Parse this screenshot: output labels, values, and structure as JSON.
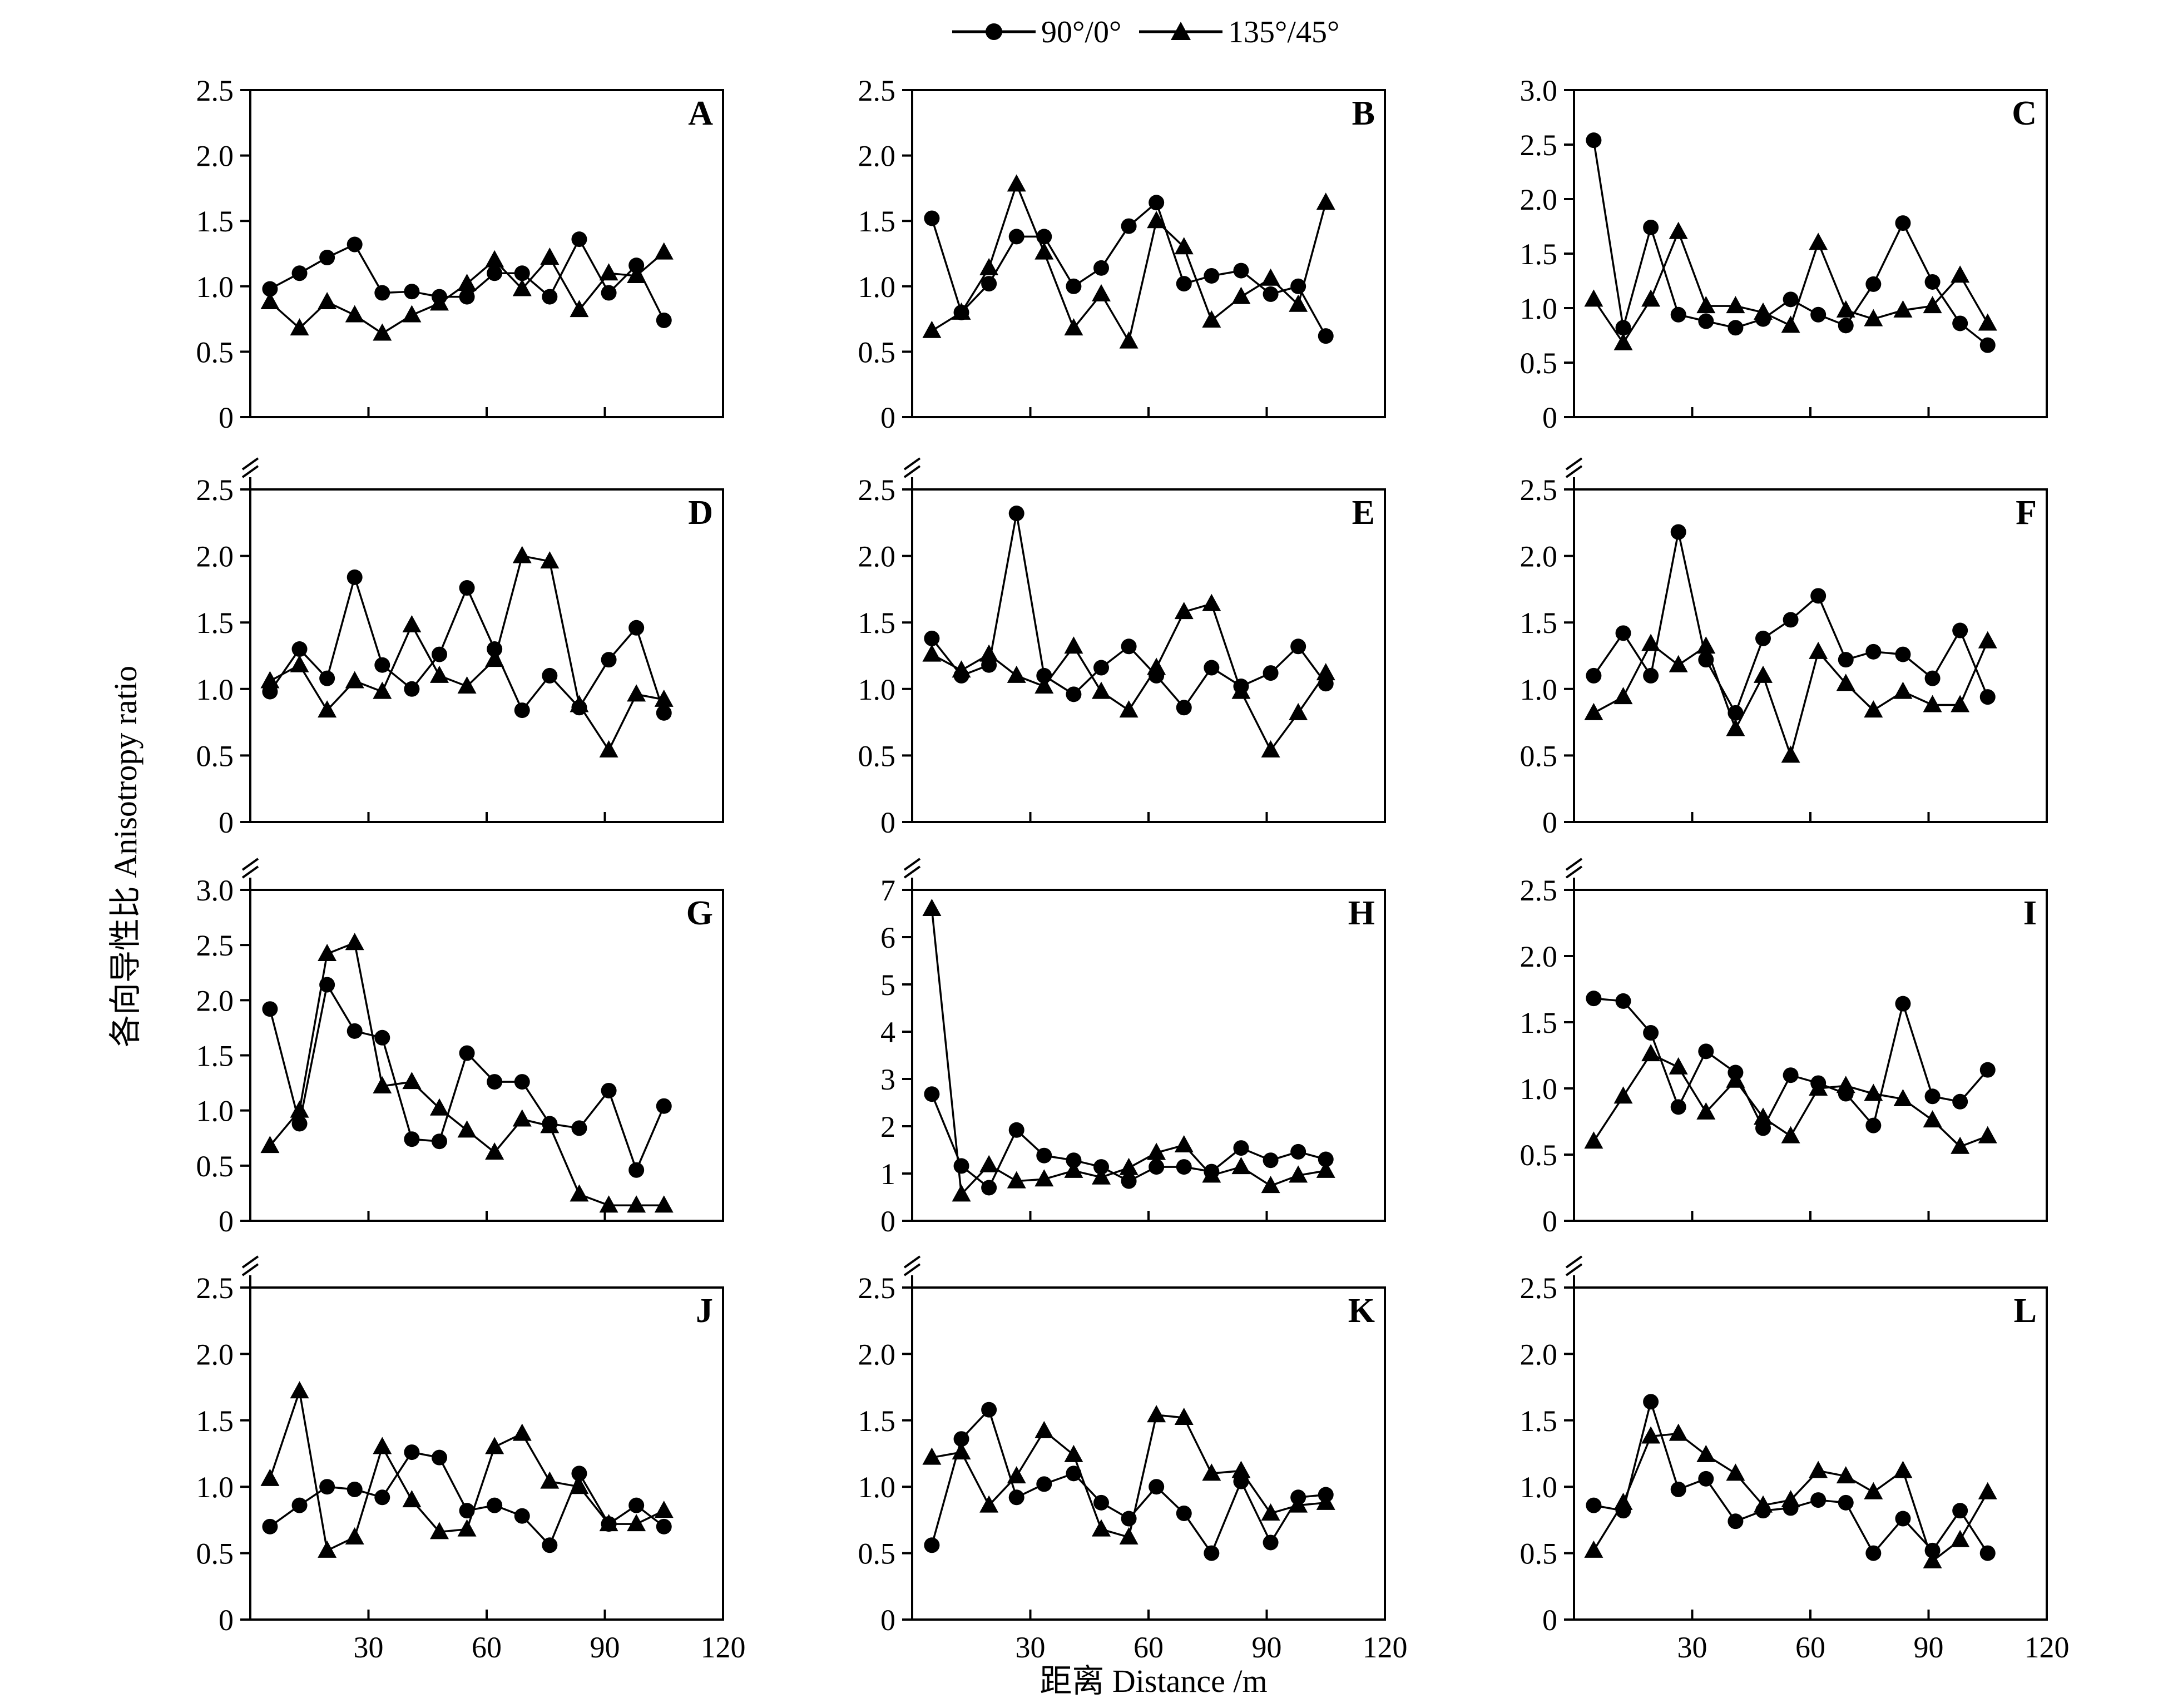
{
  "legend": [
    {
      "label": "90°/0°",
      "marker": "circle"
    },
    {
      "label": "135°/45°",
      "marker": "triangle"
    }
  ],
  "axes": {
    "ylabel": "各向导性比 Anisotropy ratio",
    "xlabel": "距离 Distance /m"
  },
  "chart_data": [
    {
      "type": "line",
      "panel": "A",
      "ylim": [
        0,
        2.5
      ],
      "yticks": [
        0,
        0.5,
        1.0,
        1.5,
        2.0,
        2.5
      ],
      "xlim": [
        0,
        120
      ],
      "xticks": [
        30,
        60,
        90,
        120
      ],
      "x": [
        5,
        12.5,
        19.5,
        26.5,
        33.5,
        41,
        48,
        55,
        62,
        69,
        76,
        83.5,
        91,
        98,
        105
      ],
      "series": [
        {
          "name": "90°/0°",
          "marker": "circle",
          "values": [
            0.98,
            1.1,
            1.22,
            1.32,
            0.95,
            0.96,
            0.92,
            0.92,
            1.1,
            1.1,
            0.92,
            1.36,
            0.95,
            1.16,
            0.74
          ]
        },
        {
          "name": "135°/45°",
          "marker": "triangle",
          "values": [
            0.88,
            0.68,
            0.88,
            0.78,
            0.64,
            0.78,
            0.87,
            1.02,
            1.2,
            0.98,
            1.22,
            0.82,
            1.1,
            1.08,
            1.26
          ]
        }
      ]
    },
    {
      "type": "line",
      "panel": "B",
      "ylim": [
        0,
        2.5
      ],
      "yticks": [
        0,
        0.5,
        1.0,
        1.5,
        2.0,
        2.5
      ],
      "xlim": [
        0,
        120
      ],
      "xticks": [
        30,
        60,
        90,
        120
      ],
      "x": [
        5,
        12.5,
        19.5,
        26.5,
        33.5,
        41,
        48,
        55,
        62,
        69,
        76,
        83.5,
        91,
        98,
        105
      ],
      "series": [
        {
          "name": "90°/0°",
          "marker": "circle",
          "values": [
            1.52,
            0.8,
            1.02,
            1.38,
            1.38,
            1.0,
            1.14,
            1.46,
            1.64,
            1.02,
            1.08,
            1.12,
            0.94,
            1.0,
            0.62
          ]
        },
        {
          "name": "135°/45°",
          "marker": "triangle",
          "values": [
            0.66,
            0.8,
            1.14,
            1.78,
            1.26,
            0.68,
            0.94,
            0.58,
            1.5,
            1.3,
            0.74,
            0.92,
            1.06,
            0.86,
            1.64
          ]
        }
      ]
    },
    {
      "type": "line",
      "panel": "C",
      "ylim": [
        0,
        3.0
      ],
      "yticks": [
        0,
        0.5,
        1.0,
        1.5,
        2.0,
        2.5,
        3.0
      ],
      "xlim": [
        0,
        120
      ],
      "xticks": [
        30,
        60,
        90,
        120
      ],
      "x": [
        5,
        12.5,
        19.5,
        26.5,
        33.5,
        41,
        48,
        55,
        62,
        69,
        76,
        83.5,
        91,
        98,
        105
      ],
      "series": [
        {
          "name": "90°/0°",
          "marker": "circle",
          "values": [
            2.54,
            0.82,
            1.74,
            0.94,
            0.88,
            0.82,
            0.9,
            1.08,
            0.94,
            0.84,
            1.22,
            1.78,
            1.24,
            0.86,
            0.66
          ]
        },
        {
          "name": "135°/45°",
          "marker": "triangle",
          "values": [
            1.08,
            0.68,
            1.08,
            1.7,
            1.02,
            1.02,
            0.96,
            0.84,
            1.6,
            0.98,
            0.9,
            0.98,
            1.02,
            1.3,
            0.86
          ]
        }
      ]
    },
    {
      "type": "line",
      "panel": "D",
      "ylim": [
        0,
        2.5
      ],
      "yticks": [
        0,
        0.5,
        1.0,
        1.5,
        2.0,
        2.5
      ],
      "xlim": [
        0,
        120
      ],
      "xticks": [
        30,
        60,
        90,
        120
      ],
      "x": [
        5,
        12.5,
        19.5,
        26.5,
        33.5,
        41,
        48,
        55,
        62,
        69,
        76,
        83.5,
        91,
        98,
        105
      ],
      "series": [
        {
          "name": "90°/0°",
          "marker": "circle",
          "values": [
            0.98,
            1.3,
            1.08,
            1.84,
            1.18,
            1.0,
            1.26,
            1.76,
            1.3,
            0.84,
            1.1,
            0.86,
            1.22,
            1.46,
            0.82
          ]
        },
        {
          "name": "135°/45°",
          "marker": "triangle",
          "values": [
            1.06,
            1.18,
            0.84,
            1.06,
            0.98,
            1.48,
            1.1,
            1.02,
            1.22,
            2.0,
            1.96,
            0.88,
            0.54,
            0.96,
            0.92
          ]
        }
      ]
    },
    {
      "type": "line",
      "panel": "E",
      "ylim": [
        0,
        2.5
      ],
      "yticks": [
        0,
        0.5,
        1.0,
        1.5,
        2.0,
        2.5
      ],
      "xlim": [
        0,
        120
      ],
      "xticks": [
        30,
        60,
        90,
        120
      ],
      "x": [
        5,
        12.5,
        19.5,
        26.5,
        33.5,
        41,
        48,
        55,
        62,
        69,
        76,
        83.5,
        91,
        98,
        105
      ],
      "series": [
        {
          "name": "90°/0°",
          "marker": "circle",
          "values": [
            1.38,
            1.1,
            1.18,
            2.32,
            1.1,
            0.96,
            1.16,
            1.32,
            1.1,
            0.86,
            1.16,
            1.02,
            1.12,
            1.32,
            1.04
          ]
        },
        {
          "name": "135°/45°",
          "marker": "triangle",
          "values": [
            1.26,
            1.14,
            1.26,
            1.1,
            1.02,
            1.32,
            0.98,
            0.84,
            1.16,
            1.58,
            1.64,
            0.98,
            0.54,
            0.82,
            1.12
          ]
        }
      ]
    },
    {
      "type": "line",
      "panel": "F",
      "ylim": [
        0,
        2.5
      ],
      "yticks": [
        0,
        0.5,
        1.0,
        1.5,
        2.0,
        2.5
      ],
      "xlim": [
        0,
        120
      ],
      "xticks": [
        30,
        60,
        90,
        120
      ],
      "x": [
        5,
        12.5,
        19.5,
        26.5,
        33.5,
        41,
        48,
        55,
        62,
        69,
        76,
        83.5,
        91,
        98,
        105
      ],
      "series": [
        {
          "name": "90°/0°",
          "marker": "circle",
          "values": [
            1.1,
            1.42,
            1.1,
            2.18,
            1.22,
            0.82,
            1.38,
            1.52,
            1.7,
            1.22,
            1.28,
            1.26,
            1.08,
            1.44,
            0.94
          ]
        },
        {
          "name": "135°/45°",
          "marker": "triangle",
          "values": [
            0.82,
            0.94,
            1.34,
            1.18,
            1.32,
            0.7,
            1.1,
            0.5,
            1.28,
            1.04,
            0.84,
            0.98,
            0.88,
            0.88,
            1.36
          ]
        }
      ]
    },
    {
      "type": "line",
      "panel": "G",
      "ylim": [
        0,
        3.0
      ],
      "yticks": [
        0,
        0.5,
        1.0,
        1.5,
        2.0,
        2.5,
        3.0
      ],
      "xlim": [
        0,
        120
      ],
      "xticks": [
        30,
        60,
        90,
        120
      ],
      "x": [
        5,
        12.5,
        19.5,
        26.5,
        33.5,
        41,
        48,
        55,
        62,
        69,
        76,
        83.5,
        91,
        98,
        105
      ],
      "series": [
        {
          "name": "90°/0°",
          "marker": "circle",
          "values": [
            1.92,
            0.88,
            2.14,
            1.72,
            1.66,
            0.74,
            0.72,
            1.52,
            1.26,
            1.26,
            0.88,
            0.84,
            1.18,
            0.46,
            1.04
          ]
        },
        {
          "name": "135°/45°",
          "marker": "triangle",
          "values": [
            0.68,
            1.0,
            2.42,
            2.52,
            1.22,
            1.26,
            1.02,
            0.82,
            0.62,
            0.92,
            0.86,
            0.24,
            0.14,
            0.14,
            0.14
          ]
        }
      ]
    },
    {
      "type": "line",
      "panel": "H",
      "ylim": [
        0,
        7
      ],
      "yticks": [
        0,
        1,
        2,
        3,
        4,
        5,
        6,
        7
      ],
      "xlim": [
        0,
        120
      ],
      "xticks": [
        30,
        60,
        90,
        120
      ],
      "x": [
        5,
        12.5,
        19.5,
        26.5,
        33.5,
        41,
        48,
        55,
        62,
        69,
        76,
        83.5,
        91,
        98,
        105
      ],
      "series": [
        {
          "name": "90°/0°",
          "marker": "circle",
          "values": [
            2.68,
            1.16,
            0.7,
            1.92,
            1.38,
            1.28,
            1.14,
            0.84,
            1.14,
            1.14,
            1.04,
            1.54,
            1.28,
            1.46,
            1.3
          ]
        },
        {
          "name": "135°/45°",
          "marker": "triangle",
          "values": [
            6.6,
            0.56,
            1.18,
            0.84,
            0.88,
            1.06,
            0.92,
            1.12,
            1.44,
            1.6,
            0.96,
            1.14,
            0.74,
            0.96,
            1.06
          ]
        }
      ]
    },
    {
      "type": "line",
      "panel": "I",
      "ylim": [
        0,
        2.5
      ],
      "yticks": [
        0,
        0.5,
        1.0,
        1.5,
        2.0,
        2.5
      ],
      "xlim": [
        0,
        120
      ],
      "xticks": [
        30,
        60,
        90,
        120
      ],
      "x": [
        5,
        12.5,
        19.5,
        26.5,
        33.5,
        41,
        48,
        55,
        62,
        69,
        76,
        83.5,
        91,
        98,
        105
      ],
      "series": [
        {
          "name": "90°/0°",
          "marker": "circle",
          "values": [
            1.68,
            1.66,
            1.42,
            0.86,
            1.28,
            1.12,
            0.7,
            1.1,
            1.04,
            0.96,
            0.72,
            1.64,
            0.94,
            0.9,
            1.14
          ]
        },
        {
          "name": "135°/45°",
          "marker": "triangle",
          "values": [
            0.6,
            0.94,
            1.26,
            1.16,
            0.82,
            1.06,
            0.78,
            0.64,
            1.0,
            1.02,
            0.96,
            0.92,
            0.76,
            0.56,
            0.64
          ]
        }
      ]
    },
    {
      "type": "line",
      "panel": "J",
      "ylim": [
        0,
        2.5
      ],
      "yticks": [
        0,
        0.5,
        1.0,
        1.5,
        2.0,
        2.5
      ],
      "xlim": [
        0,
        120
      ],
      "xticks": [
        30,
        60,
        90,
        120
      ],
      "x": [
        5,
        12.5,
        19.5,
        26.5,
        33.5,
        41,
        48,
        55,
        62,
        69,
        76,
        83.5,
        91,
        98,
        105
      ],
      "series": [
        {
          "name": "90°/0°",
          "marker": "circle",
          "values": [
            0.7,
            0.86,
            1.0,
            0.98,
            0.92,
            1.26,
            1.22,
            0.82,
            0.86,
            0.78,
            0.56,
            1.1,
            0.72,
            0.86,
            0.7
          ]
        },
        {
          "name": "135°/45°",
          "marker": "triangle",
          "values": [
            1.06,
            1.72,
            0.52,
            0.62,
            1.3,
            0.9,
            0.66,
            0.68,
            1.3,
            1.4,
            1.04,
            1.0,
            0.72,
            0.72,
            0.82
          ]
        }
      ]
    },
    {
      "type": "line",
      "panel": "K",
      "ylim": [
        0,
        2.5
      ],
      "yticks": [
        0,
        0.5,
        1.0,
        1.5,
        2.0,
        2.5
      ],
      "xlim": [
        0,
        120
      ],
      "xticks": [
        30,
        60,
        90,
        120
      ],
      "x": [
        5,
        12.5,
        19.5,
        26.5,
        33.5,
        41,
        48,
        55,
        62,
        69,
        76,
        83.5,
        91,
        98,
        105
      ],
      "series": [
        {
          "name": "90°/0°",
          "marker": "circle",
          "values": [
            0.56,
            1.36,
            1.58,
            0.92,
            1.02,
            1.1,
            0.88,
            0.76,
            1.0,
            0.8,
            0.5,
            1.04,
            0.58,
            0.92,
            0.94
          ]
        },
        {
          "name": "135°/45°",
          "marker": "triangle",
          "values": [
            1.22,
            1.26,
            0.86,
            1.08,
            1.42,
            1.24,
            0.68,
            0.62,
            1.54,
            1.52,
            1.1,
            1.12,
            0.8,
            0.86,
            0.88
          ]
        }
      ]
    },
    {
      "type": "line",
      "panel": "L",
      "ylim": [
        0,
        2.5
      ],
      "yticks": [
        0,
        0.5,
        1.0,
        1.5,
        2.0,
        2.5
      ],
      "xlim": [
        0,
        120
      ],
      "xticks": [
        30,
        60,
        90,
        120
      ],
      "x": [
        5,
        12.5,
        19.5,
        26.5,
        33.5,
        41,
        48,
        55,
        62,
        69,
        76,
        83.5,
        91,
        98,
        105
      ],
      "series": [
        {
          "name": "90°/0°",
          "marker": "circle",
          "values": [
            0.86,
            0.82,
            1.64,
            0.98,
            1.06,
            0.74,
            0.82,
            0.84,
            0.9,
            0.88,
            0.5,
            0.76,
            0.52,
            0.82,
            0.5
          ]
        },
        {
          "name": "135°/45°",
          "marker": "triangle",
          "values": [
            0.52,
            0.88,
            1.38,
            1.4,
            1.24,
            1.1,
            0.86,
            0.9,
            1.12,
            1.08,
            0.96,
            1.12,
            0.44,
            0.6,
            0.96
          ]
        }
      ]
    }
  ]
}
